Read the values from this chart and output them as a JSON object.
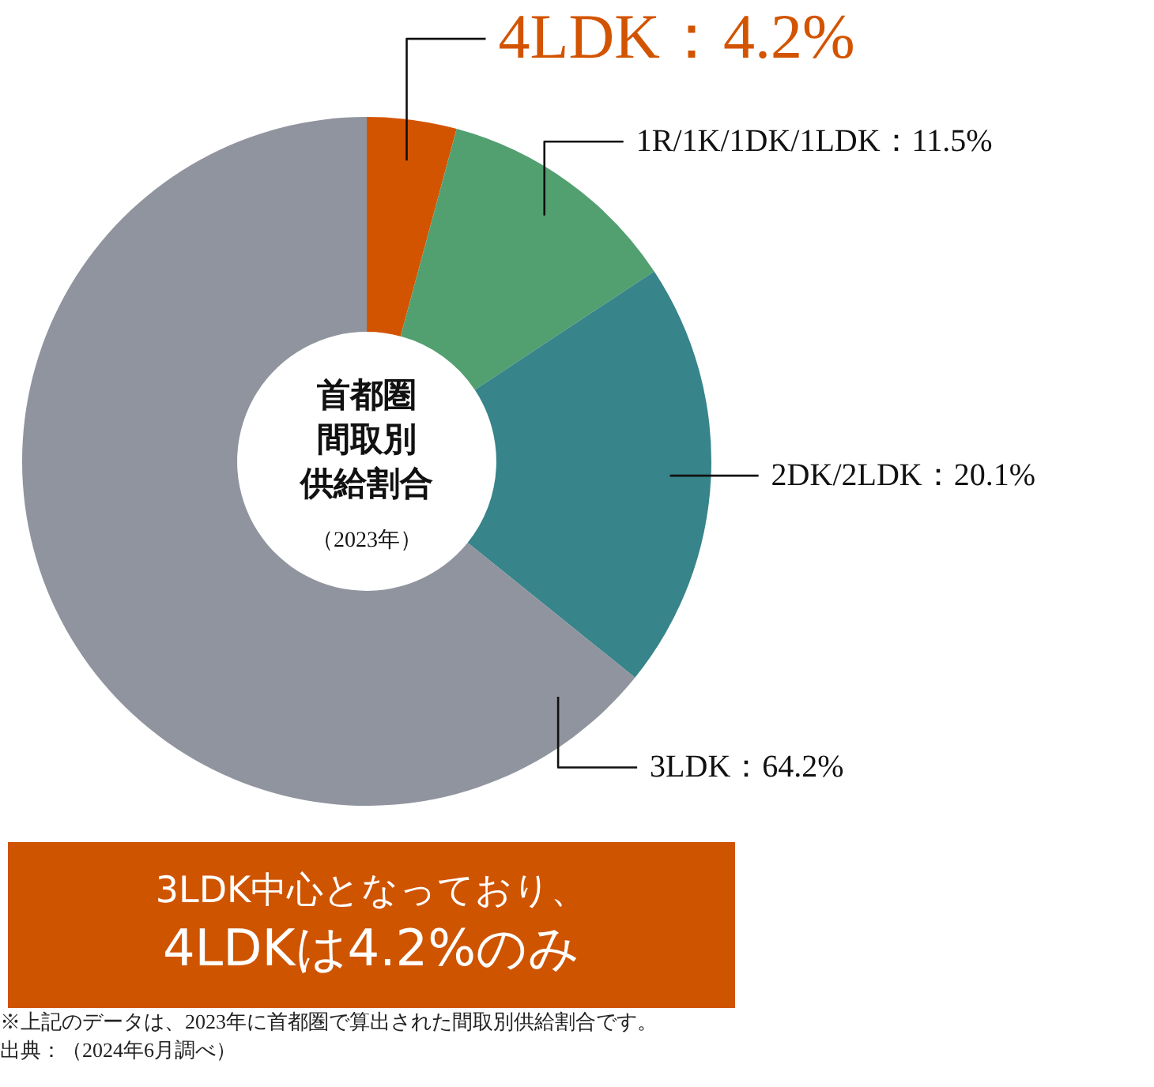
{
  "chart_data": {
    "type": "donut",
    "title": "首都圏間取別供給割合",
    "subtitle": "（2023年）",
    "categories": [
      "4LDK",
      "1R/1K/1DK/1LDK",
      "2DK/2LDK",
      "3LDK"
    ],
    "values": [
      4.2,
      11.5,
      20.1,
      64.2
    ],
    "colors": [
      "#d35400",
      "#52a070",
      "#37848a",
      "#90949e"
    ],
    "value_labels": [
      "：4.2%",
      "：11.5%",
      "：20.1%",
      "：64.2%"
    ],
    "annotations": [
      "3LDK中心となっており、\n4LDKは4.2%のみ",
      "※上記のデータは、2023年に首都圏で算出された間取別供給割合です。",
      "出典：（2024年6月調べ）"
    ]
  }
}
